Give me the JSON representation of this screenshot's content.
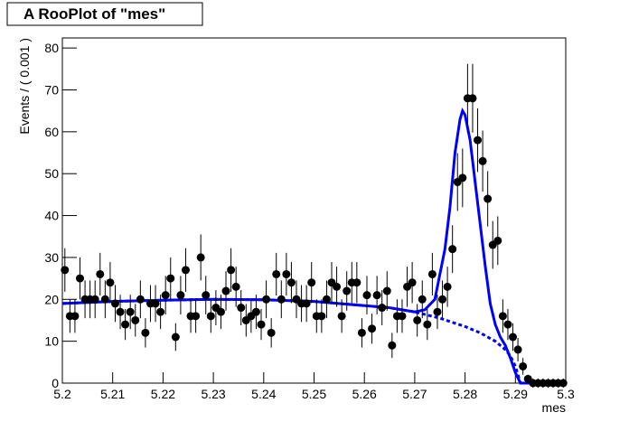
{
  "chart_data": {
    "type": "errorbar",
    "title": "A RooPlot of \"mes\"",
    "x_label": "mes",
    "y_label": "Events / ( 0.001 )",
    "bins": [
      5.2,
      5.3
    ],
    "x": [
      5.2005,
      5.2015,
      5.2025,
      5.2035,
      5.2045,
      5.2055,
      5.2065,
      5.2075,
      5.2085,
      5.2095,
      5.2105,
      5.2115,
      5.2125,
      5.2135,
      5.2145,
      5.2155,
      5.2165,
      5.2175,
      5.2185,
      5.2195,
      5.2205,
      5.2215,
      5.2225,
      5.2235,
      5.2245,
      5.2255,
      5.2265,
      5.2275,
      5.2285,
      5.2295,
      5.2305,
      5.2315,
      5.2325,
      5.2335,
      5.2345,
      5.2355,
      5.2365,
      5.2375,
      5.2385,
      5.2395,
      5.2405,
      5.2415,
      5.2425,
      5.2435,
      5.2445,
      5.2455,
      5.2465,
      5.2475,
      5.2485,
      5.2495,
      5.2505,
      5.2515,
      5.2525,
      5.2535,
      5.2545,
      5.2555,
      5.2565,
      5.2575,
      5.2585,
      5.2595,
      5.2605,
      5.2615,
      5.2625,
      5.2635,
      5.2645,
      5.2655,
      5.2665,
      5.2675,
      5.2685,
      5.2695,
      5.2705,
      5.2715,
      5.2725,
      5.2735,
      5.2745,
      5.2755,
      5.2765,
      5.2775,
      5.2785,
      5.2795,
      5.2805,
      5.2815,
      5.2825,
      5.2835,
      5.2845,
      5.2855,
      5.2865,
      5.2875,
      5.2885,
      5.2895,
      5.2905,
      5.2915,
      5.2925,
      5.2935,
      5.2945,
      5.2955,
      5.2965,
      5.2975,
      5.2985,
      5.2995
    ],
    "values": [
      27,
      16,
      16,
      25,
      20,
      20,
      20,
      26,
      20,
      24,
      19,
      17,
      14,
      17,
      15,
      20,
      12,
      19,
      19,
      17,
      21,
      25,
      11,
      21,
      27,
      16,
      16,
      30,
      21,
      16,
      18,
      17,
      22,
      27,
      23,
      18,
      15,
      16,
      17,
      14,
      20,
      12,
      26,
      20,
      26,
      24,
      20,
      19,
      19,
      24,
      16,
      16,
      20,
      24,
      23,
      16,
      22,
      24,
      24,
      12,
      21,
      13,
      21,
      18,
      22,
      9,
      16,
      16,
      23,
      24,
      15,
      20,
      14,
      26,
      17,
      20,
      23,
      32,
      48,
      49,
      68,
      68,
      58,
      53,
      44,
      33,
      34,
      16,
      14,
      11,
      8,
      4,
      1,
      0,
      0,
      0,
      0,
      0,
      0,
      0
    ],
    "errors": [
      5.2,
      4,
      4,
      5,
      4.5,
      4.5,
      4.5,
      5.1,
      4.5,
      4.9,
      4.4,
      4.1,
      3.7,
      4.1,
      3.9,
      4.5,
      3.5,
      4.4,
      4.4,
      4.1,
      4.6,
      5,
      3.3,
      4.6,
      5.2,
      4,
      4,
      5.5,
      4.6,
      4,
      4.2,
      4.1,
      4.7,
      5.2,
      4.8,
      4.2,
      3.9,
      4,
      4.1,
      3.7,
      4.5,
      3.5,
      5.1,
      4.5,
      5.1,
      4.9,
      4.5,
      4.4,
      4.4,
      4.9,
      4,
      4,
      4.5,
      4.9,
      4.8,
      4,
      4.7,
      4.9,
      4.9,
      3.5,
      4.6,
      3.6,
      4.6,
      4.2,
      4.7,
      3,
      4,
      4,
      4.8,
      4.9,
      3.9,
      4.5,
      3.7,
      5.1,
      4.1,
      4.5,
      4.8,
      5.7,
      6.9,
      7,
      8.2,
      8.2,
      7.6,
      7.3,
      6.6,
      5.7,
      5.8,
      4,
      3.7,
      3.3,
      2.8,
      2,
      1,
      1.1,
      1.1,
      1.1,
      1.1,
      1.1,
      1.1,
      1.1
    ],
    "color": "#000000",
    "lines": [
      {
        "style": "solid",
        "color": "#0000ff",
        "x": [
          5.2,
          5.21,
          5.22,
          5.23,
          5.24,
          5.25,
          5.26,
          5.265,
          5.27,
          5.272,
          5.274,
          5.276,
          5.277,
          5.278,
          5.279,
          5.2795,
          5.28,
          5.281,
          5.282,
          5.283,
          5.284,
          5.285,
          5.286,
          5.287,
          5.288,
          5.289,
          5.29,
          5.291,
          5.3
        ],
        "values": [
          19,
          19.5,
          19.8,
          20,
          19.9,
          19.5,
          18.5,
          18,
          17,
          17.5,
          20,
          32,
          42,
          55,
          63,
          65,
          64,
          58,
          48,
          38,
          28,
          19,
          14,
          11,
          9,
          6,
          2.5,
          0,
          0
        ]
      },
      {
        "style": "dashed",
        "color": "#0000ff",
        "x": [
          5.2,
          5.21,
          5.22,
          5.23,
          5.24,
          5.25,
          5.26,
          5.265,
          5.27,
          5.275,
          5.28,
          5.283,
          5.286,
          5.288,
          5.289,
          5.29,
          5.291,
          5.3
        ],
        "values": [
          19,
          19.5,
          19.8,
          20,
          19.9,
          19.5,
          18.5,
          18,
          17,
          15.5,
          13.5,
          12,
          10,
          8,
          6.5,
          4,
          0,
          0
        ]
      }
    ],
    "xlim": [
      5.2,
      5.3
    ],
    "xticks": [
      5.2,
      5.21,
      5.22,
      5.23,
      5.24,
      5.25,
      5.26,
      5.27,
      5.28,
      5.29,
      5.3
    ],
    "ylim": [
      0,
      82.4
    ],
    "yticks": [
      0,
      10,
      20,
      30,
      40,
      50,
      60,
      70,
      80
    ]
  }
}
